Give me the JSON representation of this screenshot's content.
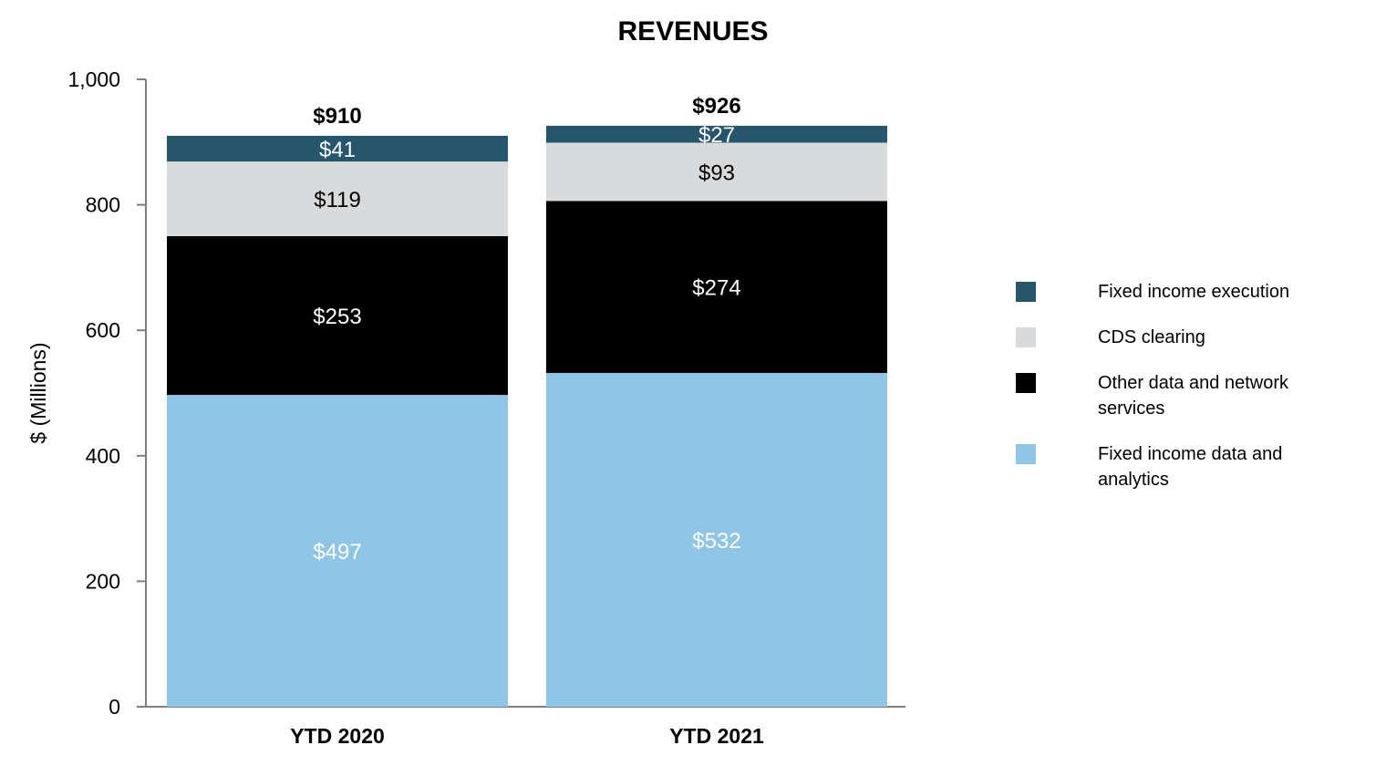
{
  "chart_data": {
    "type": "bar",
    "stacked": true,
    "title": "REVENUES",
    "ylabel": "$ (Millions)",
    "xlabel": "",
    "ylim": [
      0,
      1000
    ],
    "yticks": [
      0,
      200,
      400,
      600,
      800,
      1000
    ],
    "ytick_labels": [
      "0",
      "200",
      "400",
      "600",
      "800",
      "1,000"
    ],
    "categories": [
      "YTD 2020",
      "YTD 2021"
    ],
    "totals": [
      910,
      926
    ],
    "total_labels": [
      "$910",
      "$926"
    ],
    "series": [
      {
        "name": "Fixed income data and analytics",
        "values": [
          497,
          532
        ],
        "labels": [
          "$497",
          "$532"
        ],
        "color": "#8fc6e8",
        "label_color": "#ffffff"
      },
      {
        "name": "Other data and network services",
        "values": [
          253,
          274
        ],
        "labels": [
          "$253",
          "$274"
        ],
        "color": "#000000",
        "label_color": "#ffffff"
      },
      {
        "name": "CDS clearing",
        "values": [
          119,
          93
        ],
        "labels": [
          "$119",
          "$93"
        ],
        "color": "#d9dadb",
        "label_color": "#000000"
      },
      {
        "name": "Fixed income execution",
        "values": [
          41,
          27
        ],
        "labels": [
          "$41",
          "$27"
        ],
        "color": "#25566b",
        "label_color": "#ffffff"
      }
    ],
    "legend": {
      "position": "right",
      "order": [
        "Fixed income execution",
        "CDS clearing",
        "Other data and network services",
        "Fixed income data and analytics"
      ]
    },
    "grid": false
  }
}
